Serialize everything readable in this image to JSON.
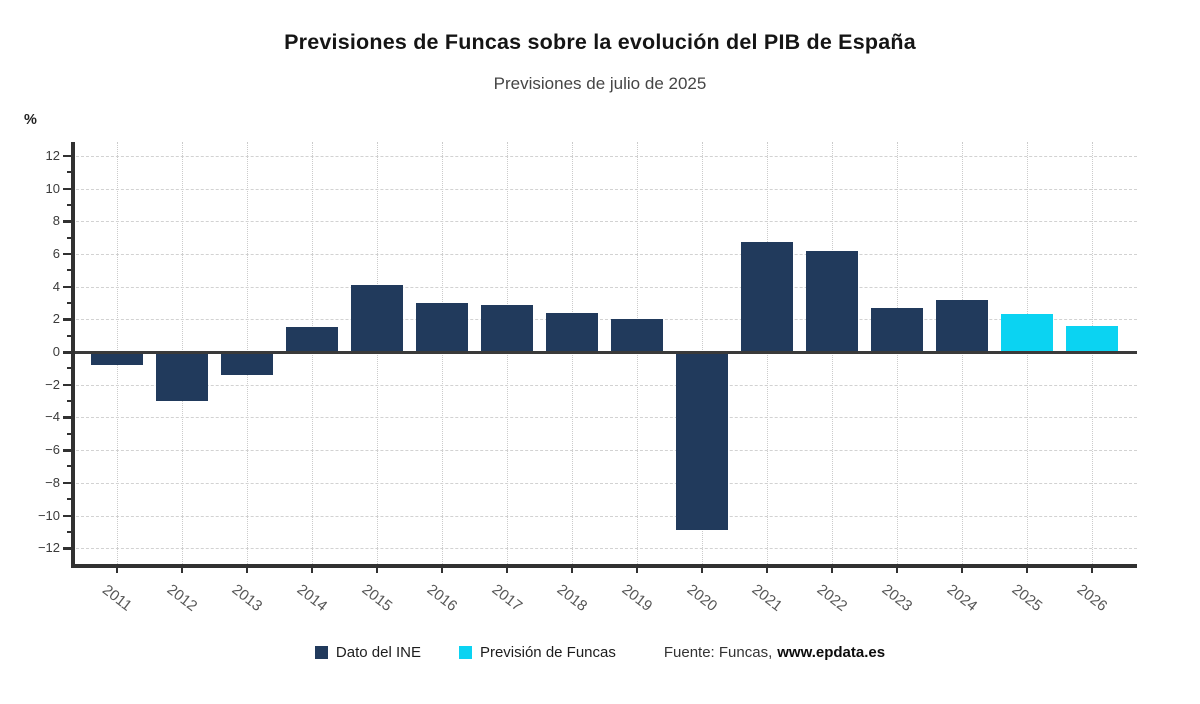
{
  "chart_data": {
    "type": "bar",
    "title": "Previsiones de Funcas sobre la evolución del PIB de España",
    "subtitle": "Previsiones de julio de 2025",
    "ylabel": "%",
    "xlabel": "",
    "ylim": [
      -13,
      12.8
    ],
    "ytick_step": 2,
    "grid": true,
    "legend_position": "bottom",
    "categories": [
      "2011",
      "2012",
      "2013",
      "2014",
      "2015",
      "2016",
      "2017",
      "2018",
      "2019",
      "2020",
      "2021",
      "2022",
      "2023",
      "2024",
      "2025",
      "2026"
    ],
    "series": [
      {
        "name": "Dato del INE",
        "color": "#213a5c",
        "values": [
          -0.8,
          -3.0,
          -1.4,
          1.5,
          4.1,
          3.0,
          2.9,
          2.4,
          2.0,
          -10.9,
          6.7,
          6.2,
          2.7,
          3.2,
          null,
          null
        ]
      },
      {
        "name": "Previsión de Funcas",
        "color": "#0bd3f2",
        "values": [
          null,
          null,
          null,
          null,
          null,
          null,
          null,
          null,
          null,
          null,
          null,
          null,
          null,
          null,
          2.3,
          1.6
        ]
      }
    ]
  },
  "y_axis": {
    "unit_label": "%",
    "ticks": [
      12,
      10,
      8,
      6,
      4,
      2,
      0,
      -2,
      -4,
      -6,
      -8,
      -10,
      -12
    ],
    "minor_ticks": [
      11,
      9,
      7,
      5,
      3,
      1,
      -1,
      -3,
      -5,
      -7,
      -9,
      -11
    ]
  },
  "source": {
    "prefix": "Fuente: Funcas,",
    "site": "www.epdata.es"
  }
}
